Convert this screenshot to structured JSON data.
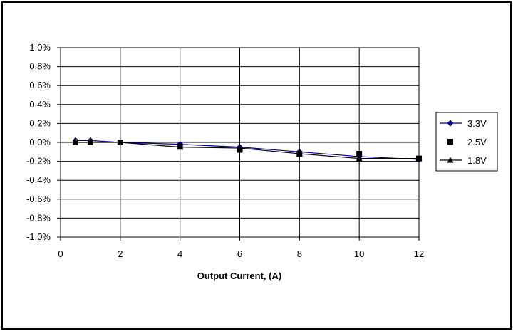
{
  "chart_data": {
    "type": "line",
    "title": "",
    "xlabel": "Output Current, (A)",
    "ylabel": "",
    "xlim": [
      0,
      12
    ],
    "ylim": [
      -1.0,
      1.0
    ],
    "x_ticks": [
      0,
      2,
      4,
      6,
      8,
      10,
      12
    ],
    "y_ticks": [
      1.0,
      0.8,
      0.6,
      0.4,
      0.2,
      0.0,
      -0.2,
      -0.4,
      -0.6,
      -0.8,
      -1.0
    ],
    "x_tick_labels": [
      "0",
      "2",
      "4",
      "6",
      "8",
      "10",
      "12"
    ],
    "y_tick_labels": [
      "1.0%",
      "0.8%",
      "0.6%",
      "0.4%",
      "0.2%",
      "0.0%",
      "-0.2%",
      "-0.4%",
      "-0.6%",
      "-0.8%",
      "-1.0%"
    ],
    "grid": true,
    "legend_position": "right",
    "x": [
      0.5,
      1,
      2,
      4,
      6,
      8,
      10,
      12
    ],
    "series": [
      {
        "name": "3.3V",
        "marker": "diamond",
        "line": true,
        "color": "#000080",
        "values": [
          0.02,
          0.02,
          0.0,
          -0.02,
          -0.05,
          -0.1,
          -0.15,
          -0.18
        ]
      },
      {
        "name": "2.5V",
        "marker": "square",
        "line": false,
        "color": "#000000",
        "values": [
          0.0,
          0.0,
          0.0,
          -0.04,
          -0.08,
          -0.12,
          -0.12,
          -0.17
        ]
      },
      {
        "name": "1.8V",
        "marker": "triangle",
        "line": true,
        "color": "#000000",
        "values": [
          0.0,
          0.0,
          0.0,
          -0.05,
          -0.06,
          -0.12,
          -0.17,
          -0.17
        ]
      }
    ]
  }
}
